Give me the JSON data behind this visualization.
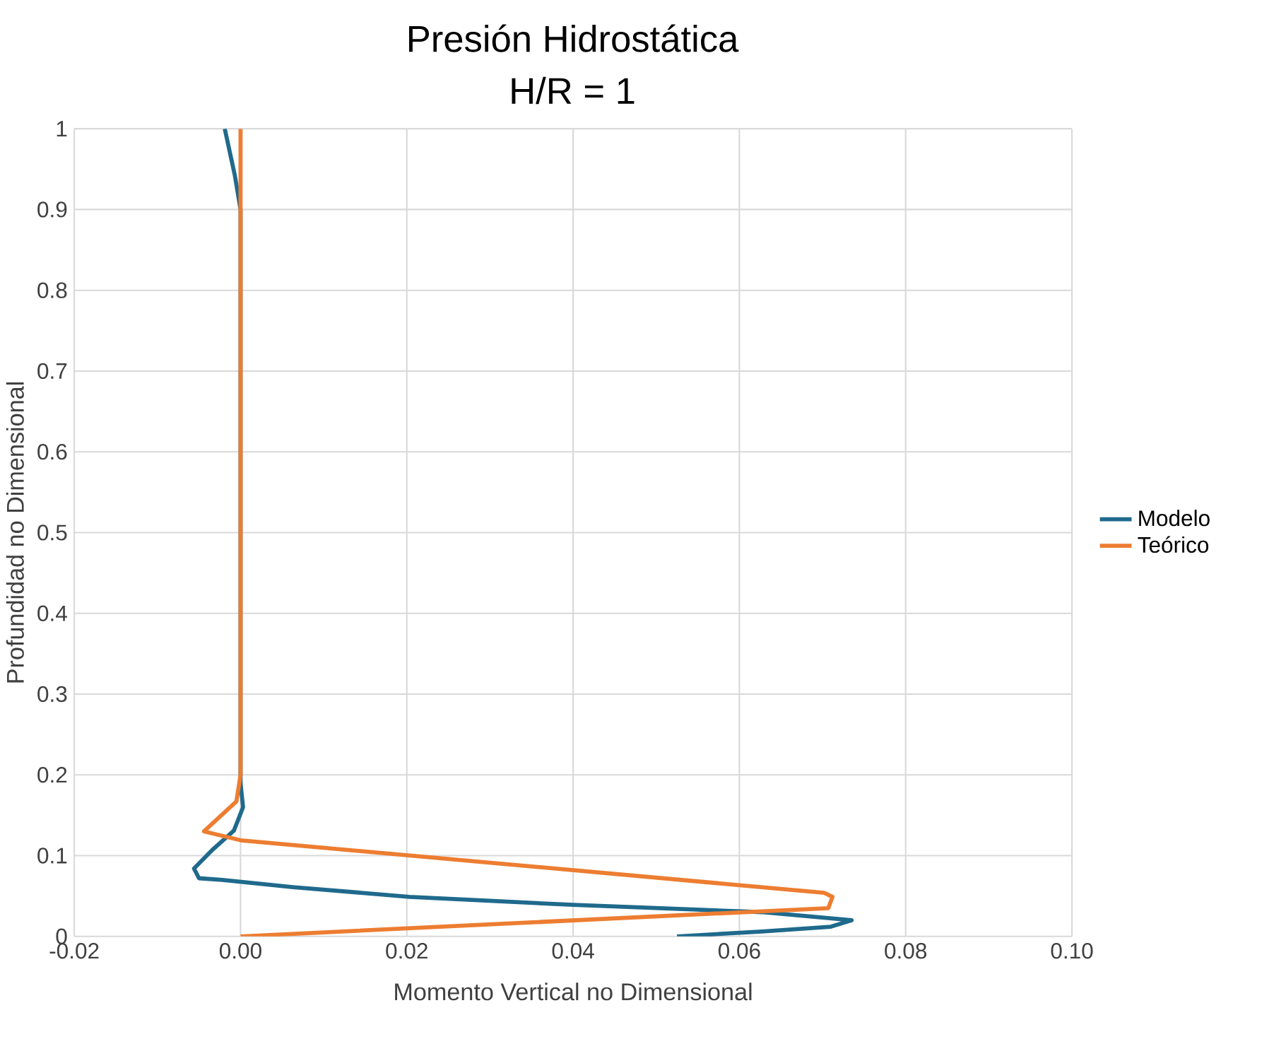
{
  "chart_data": {
    "type": "line",
    "title": "Presión Hidrostática",
    "subtitle": "H/R = 1",
    "xlabel": "Momento Vertical no Dimensional",
    "ylabel": "Profundidad no Dimensional",
    "xlim": [
      -0.02,
      0.1
    ],
    "ylim": [
      0,
      1
    ],
    "xticks": [
      {
        "value": -0.02,
        "label": "-0.02"
      },
      {
        "value": 0,
        "label": "0.00"
      },
      {
        "value": 0.02,
        "label": "0.02"
      },
      {
        "value": 0.04,
        "label": "0.04"
      },
      {
        "value": 0.06,
        "label": "0.06"
      },
      {
        "value": 0.08,
        "label": "0.08"
      },
      {
        "value": 0.1,
        "label": "0.10"
      }
    ],
    "yticks": [
      0,
      0.1,
      0.2,
      0.3,
      0.4,
      0.5,
      0.6,
      0.7,
      0.8,
      0.9,
      1
    ],
    "grid": true,
    "legend": "right",
    "series": [
      {
        "name": "Modelo",
        "color": "#1f6a8c",
        "x": [
          0.0525,
          0.0627,
          0.071,
          0.0735,
          0.0627,
          0.04,
          0.0203,
          0.0063,
          -0.0022,
          -0.005,
          -0.0056,
          -0.0034,
          -0.0008,
          0.0003,
          0,
          0,
          -0.0007,
          -0.0019
        ],
        "values": [
          0,
          0.006,
          0.012,
          0.02,
          0.03,
          0.039,
          0.049,
          0.061,
          0.07,
          0.072,
          0.084,
          0.107,
          0.131,
          0.16,
          0.19,
          0.9,
          0.943,
          1
        ]
      },
      {
        "name": "Teórico",
        "color": "#ed7d31",
        "x": [
          0,
          0.0707,
          0.0712,
          0.0702,
          0,
          -0.0044,
          -0.0005,
          0,
          0
        ],
        "values": [
          0,
          0.035,
          0.049,
          0.054,
          0.119,
          0.13,
          0.167,
          0.2,
          1
        ]
      }
    ]
  }
}
